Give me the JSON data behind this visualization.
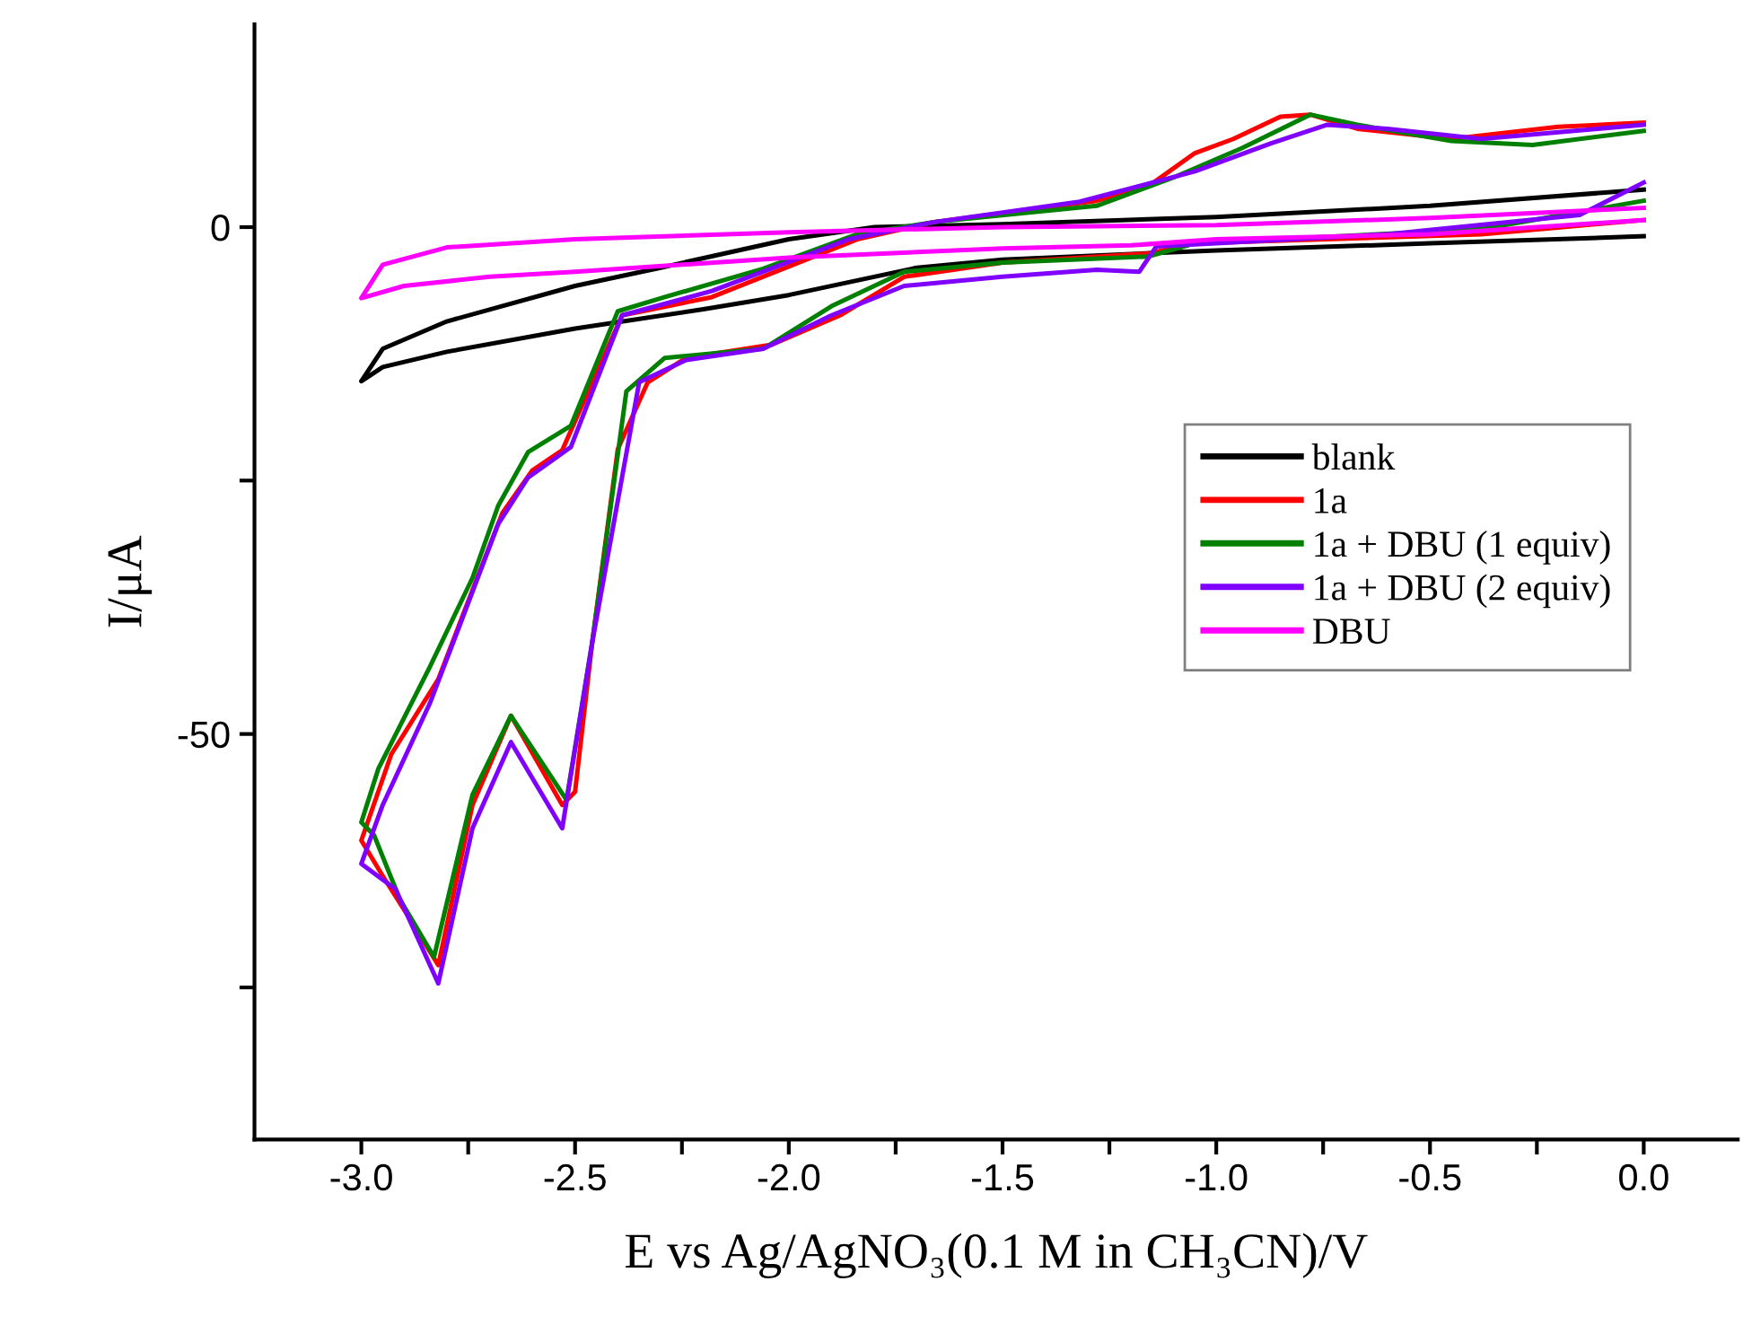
{
  "chart_data": {
    "type": "line",
    "xlabel": "E vs Ag/AgNO₃(0.1 M in CH₃CN)/V",
    "ylabel": "I/μA",
    "xlim": [
      -3.25,
      0.22
    ],
    "ylim": [
      -90,
      20
    ],
    "xticks": [
      {
        "value": -3.0,
        "label": "-3.0"
      },
      {
        "value": -2.75,
        "label": null
      },
      {
        "value": -2.5,
        "label": "-2.5"
      },
      {
        "value": -2.25,
        "label": null
      },
      {
        "value": -2.0,
        "label": "-2.0"
      },
      {
        "value": -1.75,
        "label": null
      },
      {
        "value": -1.5,
        "label": "-1.5"
      },
      {
        "value": -1.25,
        "label": null
      },
      {
        "value": -1.0,
        "label": "-1.0"
      },
      {
        "value": -0.75,
        "label": null
      },
      {
        "value": -0.5,
        "label": "-0.5"
      },
      {
        "value": -0.25,
        "label": null
      },
      {
        "value": 0.0,
        "label": "0.0"
      }
    ],
    "yticks": [
      {
        "value": -75,
        "label": null
      },
      -50,
      {
        "value": -25,
        "label": null
      },
      0
    ],
    "grid": false,
    "legend": "right",
    "series": [
      {
        "name": "blank",
        "color": "#000000",
        "x": [
          0,
          -0.5,
          -1.0,
          -1.5,
          -1.8,
          -2.0,
          -2.3,
          -2.5,
          -2.8,
          -2.95,
          -3.0,
          -2.95,
          -2.8,
          -2.5,
          -2.2,
          -2.0,
          -1.7,
          -1.5,
          -1.0,
          -0.5,
          0
        ],
        "values": [
          3.7,
          2.1,
          1,
          0.3,
          0,
          -1.2,
          -4,
          -5.8,
          -9.3,
          -12,
          -15.2,
          -13.8,
          -12.3,
          -10,
          -8.1,
          -6.7,
          -4,
          -3.2,
          -2.3,
          -1.6,
          -0.9
        ]
      },
      {
        "name": "1a",
        "color": "#ff0000",
        "x": [
          0,
          -0.38,
          -1.05,
          -1.16,
          -1.5,
          -1.73,
          -1.88,
          -2.04,
          -2.24,
          -2.33,
          -2.4,
          -2.46,
          -2.5,
          -2.53,
          -2.65,
          -2.74,
          -2.82,
          -2.89,
          -2.95,
          -3.0,
          -2.93,
          -2.82,
          -2.74,
          -2.67,
          -2.6,
          -2.53,
          -2.39,
          -2.18,
          -1.84,
          -1.66,
          -1.28,
          -1.16,
          -1.05,
          -0.96,
          -0.85,
          -0.78,
          -0.67,
          -0.45,
          -0.2,
          0
        ],
        "values": [
          0.7,
          -0.7,
          -1.6,
          -2.6,
          -3.5,
          -4.9,
          -8.7,
          -11.6,
          -12.9,
          -15.3,
          -21.9,
          -41,
          -55.7,
          -57,
          -48.2,
          -57,
          -72.8,
          -68,
          -64,
          -60.5,
          -52,
          -44.6,
          -35.8,
          -28.2,
          -24,
          -22,
          -8.7,
          -6.9,
          -1.2,
          0.5,
          2.6,
          4,
          7.3,
          8.7,
          10.9,
          11.1,
          9.7,
          8.7,
          9.9,
          10.3
        ]
      },
      {
        "name": "1a + DBU (1 equiv)",
        "color": "#008000",
        "x": [
          0,
          -0.38,
          -1.05,
          -1.16,
          -1.5,
          -1.73,
          -1.9,
          -2.06,
          -2.29,
          -2.38,
          -2.46,
          -2.52,
          -2.65,
          -2.74,
          -2.83,
          -2.91,
          -2.97,
          -3.0,
          -2.96,
          -2.84,
          -2.74,
          -2.68,
          -2.61,
          -2.51,
          -2.4,
          -2.29,
          -2.06,
          -1.84,
          -1.66,
          -1.28,
          -1.1,
          -0.94,
          -0.78,
          -0.67,
          -0.45,
          -0.26,
          0
        ],
        "values": [
          2.6,
          -0.2,
          -1.6,
          -2.9,
          -3.5,
          -4.4,
          -7.8,
          -12,
          -12.9,
          -16.2,
          -41,
          -56.5,
          -48.2,
          -56,
          -72,
          -66.3,
          -60,
          -58.7,
          -53.4,
          -43.4,
          -34.6,
          -27.5,
          -22.2,
          -19.6,
          -8.3,
          -6.9,
          -4.1,
          -0.7,
          0.5,
          2.1,
          4.9,
          7.8,
          11.1,
          10.1,
          8.5,
          8.1,
          9.5
        ]
      },
      {
        "name": "1a + DBU (2 equiv)",
        "color": "#8000ff",
        "x": [
          0,
          -0.15,
          -0.6,
          -1.14,
          -1.18,
          -1.28,
          -1.5,
          -1.73,
          -1.9,
          -2.06,
          -2.24,
          -2.35,
          -2.46,
          -2.53,
          -2.65,
          -2.74,
          -2.82,
          -2.92,
          -3.0,
          -2.95,
          -2.84,
          -2.77,
          -2.68,
          -2.61,
          -2.51,
          -2.39,
          -2.18,
          -1.86,
          -1.66,
          -1.32,
          -1.05,
          -0.87,
          -0.74,
          -0.6,
          -0.38,
          0
        ],
        "values": [
          4.4,
          1.2,
          -0.7,
          -1.9,
          -4.4,
          -4.2,
          -4.9,
          -5.8,
          -8.7,
          -12,
          -13.1,
          -15.3,
          -41,
          -59.3,
          -50.8,
          -59.3,
          -74.6,
          -65.3,
          -62.8,
          -57,
          -47,
          -39.3,
          -29.3,
          -24.7,
          -21.7,
          -8.7,
          -6.3,
          -1.2,
          0.5,
          2.5,
          5.5,
          8.3,
          10.1,
          9.7,
          8.7,
          10.1
        ]
      },
      {
        "name": "DBU",
        "color": "#ff00ff",
        "x": [
          0,
          -0.5,
          -1.0,
          -1.5,
          -2.0,
          -2.5,
          -2.8,
          -2.95,
          -3.0,
          -2.9,
          -2.7,
          -2.5,
          -2.0,
          -1.5,
          -1.2,
          -1.0,
          -0.5,
          0
        ],
        "values": [
          1.9,
          0.9,
          0.2,
          0,
          -0.5,
          -1.2,
          -2,
          -3.7,
          -7,
          -5.8,
          -4.9,
          -4.4,
          -3,
          -2.1,
          -1.8,
          -1.2,
          -0.7,
          0.7
        ]
      }
    ]
  }
}
